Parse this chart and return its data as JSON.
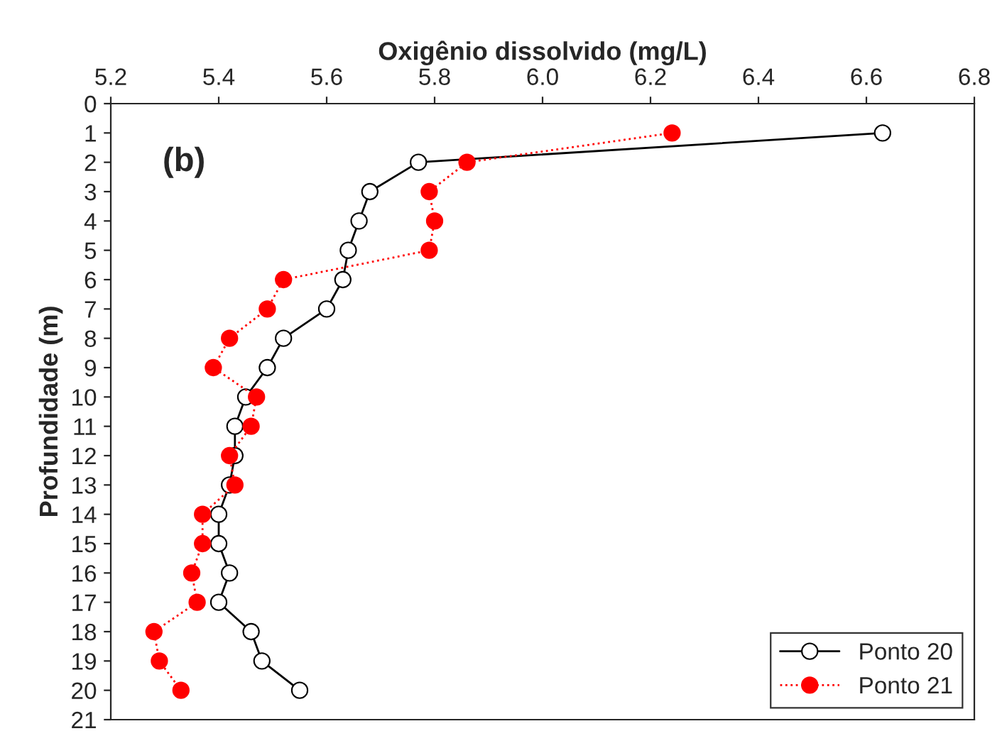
{
  "chart_data": {
    "type": "line",
    "xlabel": "Oxigênio dissolvido (mg/L)",
    "ylabel": "Profundidade (m)",
    "annotations": [
      "(b)"
    ],
    "xlim": [
      5.2,
      6.8
    ],
    "xticks": [
      5.2,
      5.4,
      5.6,
      5.8,
      {
        "value": 6,
        "label": "6.0"
      },
      6.2,
      6.4,
      6.6,
      6.8
    ],
    "ylim": [
      21,
      0
    ],
    "yticks": [
      0,
      1,
      2,
      3,
      4,
      5,
      6,
      7,
      8,
      9,
      10,
      11,
      12,
      13,
      14,
      15,
      16,
      17,
      18,
      19,
      20,
      21
    ],
    "grid": false,
    "legend": "bottom right",
    "series": [
      {
        "name": "Ponto 20",
        "color": "#000000",
        "marker": "circle",
        "line_style": "solid",
        "x": [
          6.63,
          5.77,
          5.68,
          5.66,
          5.64,
          5.63,
          5.6,
          5.52,
          5.49,
          5.45,
          5.43,
          5.43,
          5.42,
          5.4,
          5.4,
          5.42,
          5.4,
          5.46,
          5.48,
          5.55
        ],
        "values": [
          1,
          2,
          3,
          4,
          5,
          6,
          7,
          8,
          9,
          10,
          11,
          12,
          13,
          14,
          15,
          16,
          17,
          18,
          19,
          20
        ]
      },
      {
        "name": "Ponto 21",
        "color": "#ff0000",
        "marker": "circle",
        "line_style": "dotted",
        "x": [
          6.24,
          5.86,
          5.79,
          5.8,
          5.79,
          5.52,
          5.49,
          5.42,
          5.39,
          5.47,
          5.46,
          5.42,
          5.43,
          5.37,
          5.37,
          5.35,
          5.36,
          5.28,
          5.29,
          5.33
        ],
        "values": [
          1,
          2,
          3,
          4,
          5,
          6,
          7,
          8,
          9,
          10,
          11,
          12,
          13,
          14,
          15,
          16,
          17,
          18,
          19,
          20
        ]
      }
    ]
  }
}
